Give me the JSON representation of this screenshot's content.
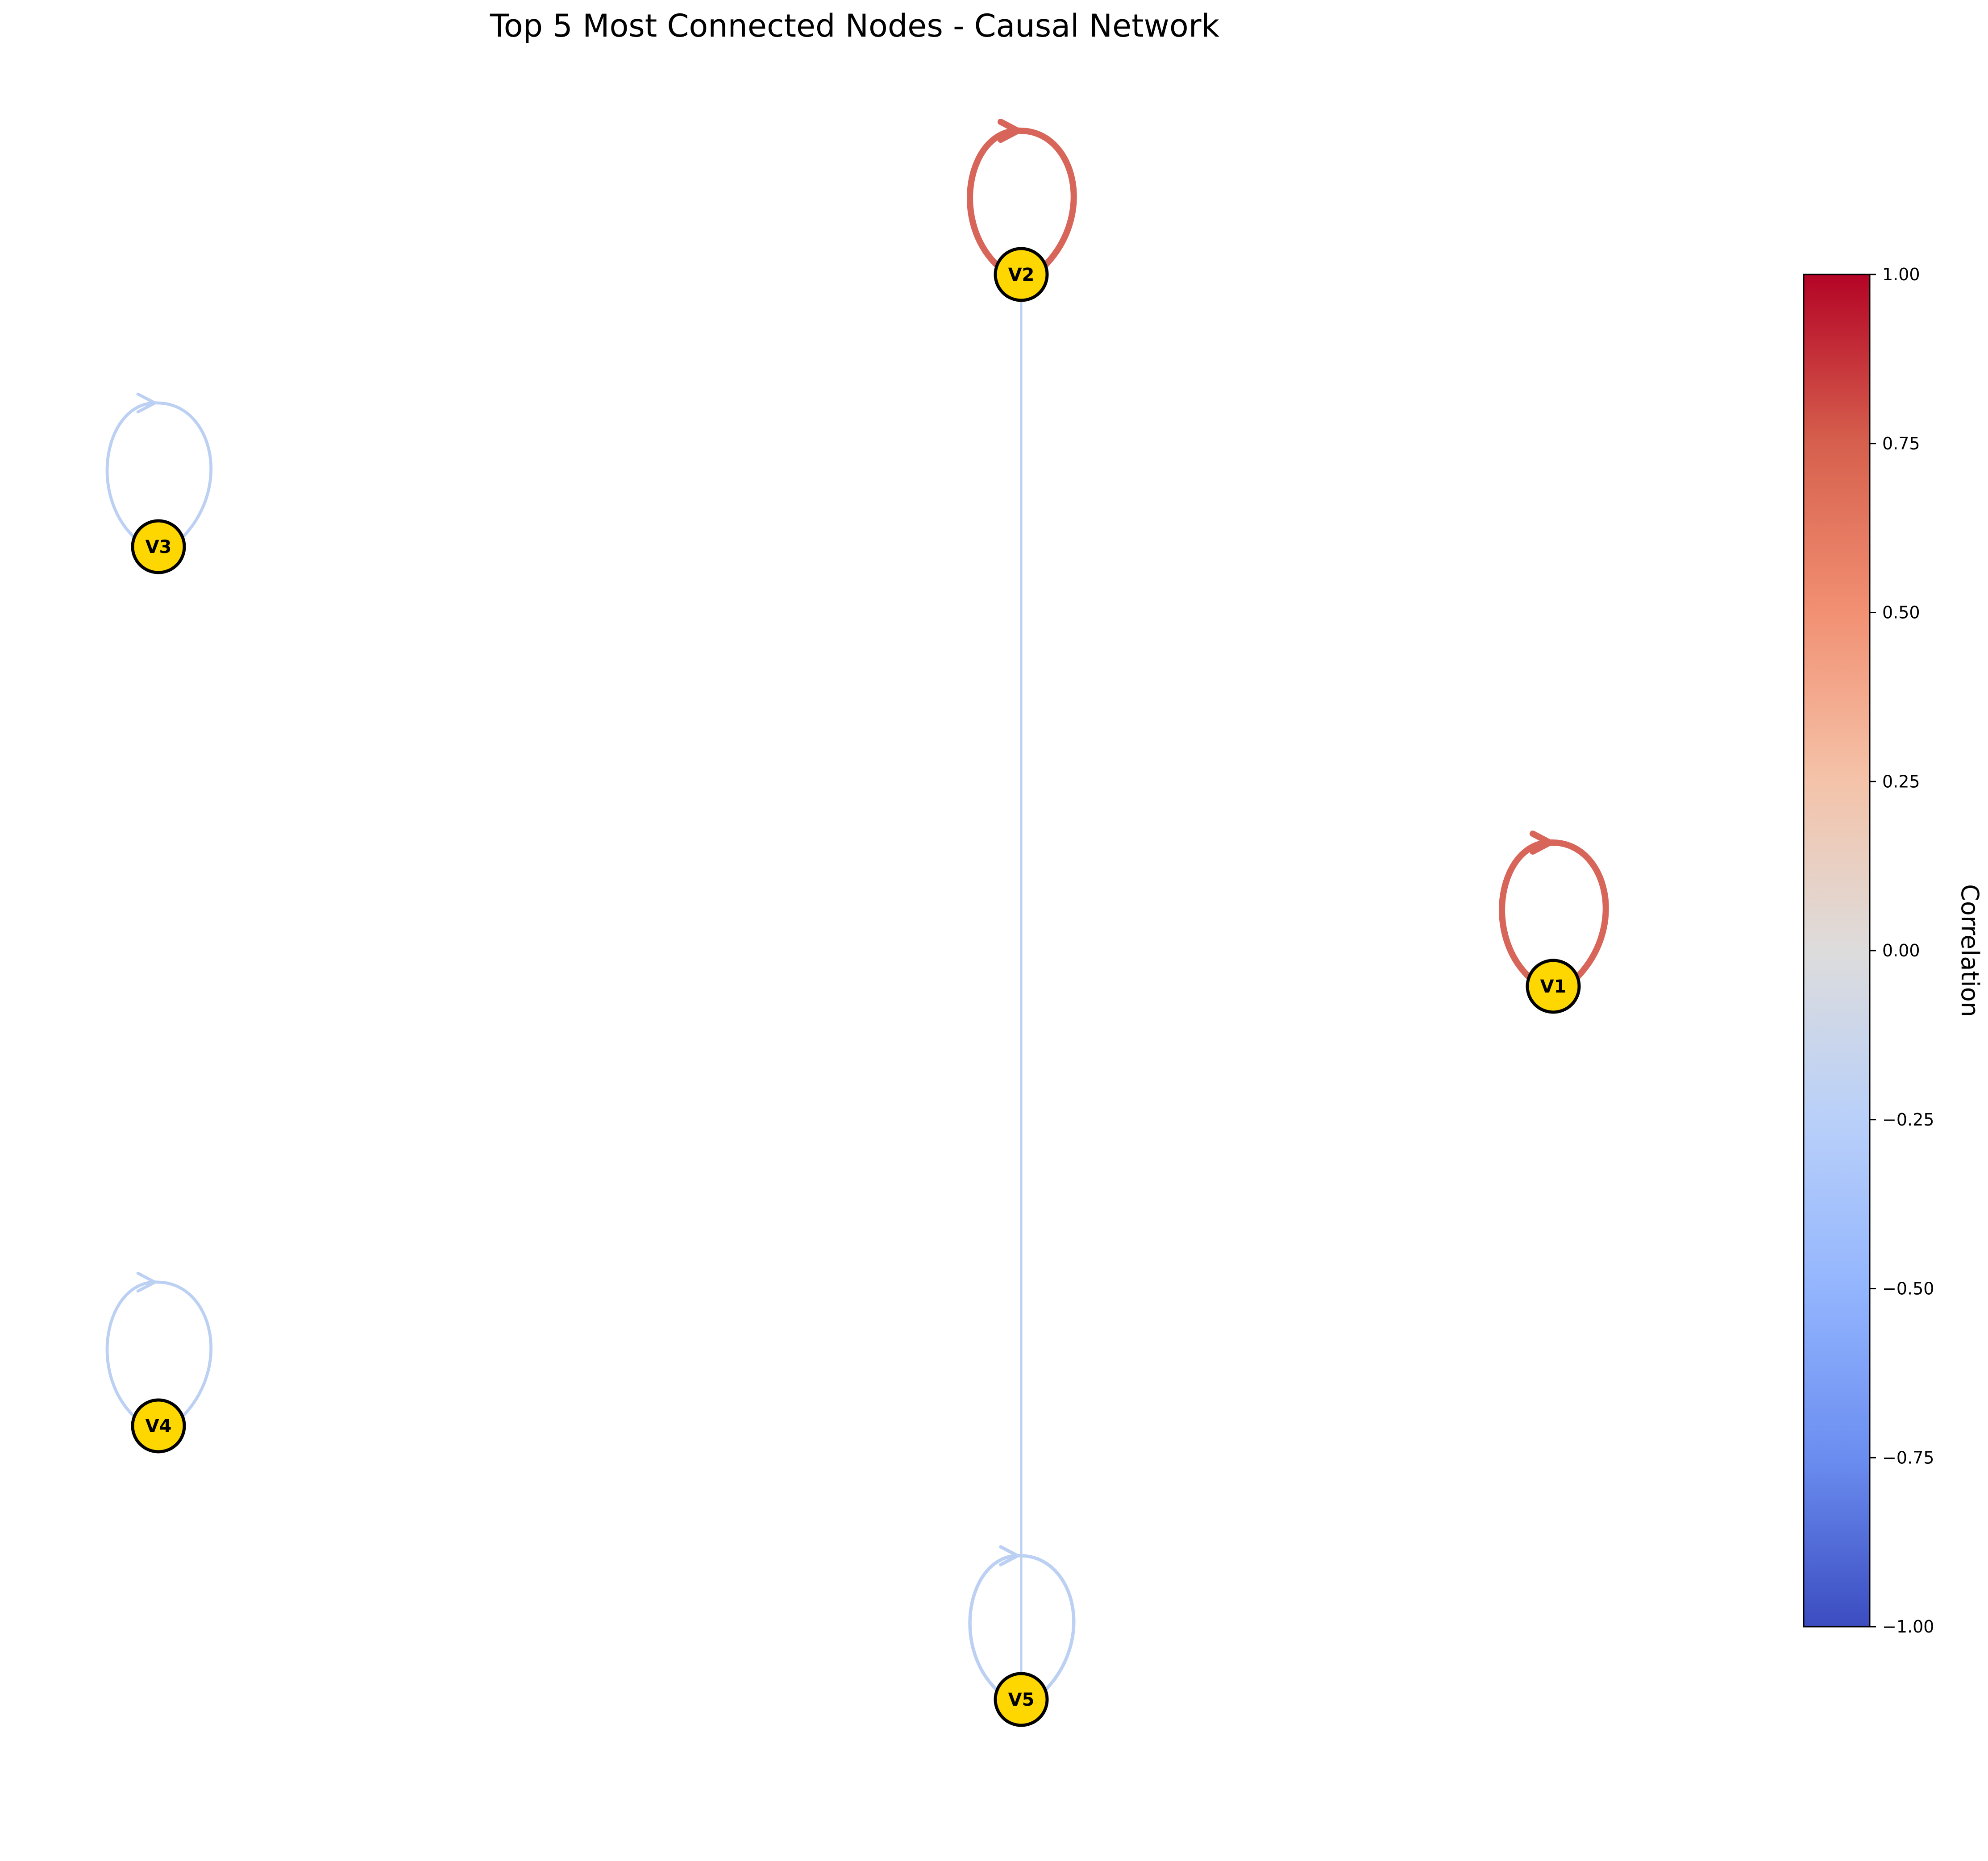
{
  "title": "Top 5 Most Connected Nodes - Causal Network",
  "colors": {
    "node_fill": "#FFD700",
    "node_stroke": "#000000",
    "positive_edge": "#D8655A",
    "negative_edge": "#BCD0F3"
  },
  "nodes": [
    {
      "id": "V1",
      "label": "V1"
    },
    {
      "id": "V2",
      "label": "V2"
    },
    {
      "id": "V3",
      "label": "V3"
    },
    {
      "id": "V4",
      "label": "V4"
    },
    {
      "id": "V5",
      "label": "V5"
    }
  ],
  "edges": [
    {
      "source": "V2",
      "target": "V2",
      "correlation": 0.72
    },
    {
      "source": "V1",
      "target": "V1",
      "correlation": 0.72
    },
    {
      "source": "V3",
      "target": "V3",
      "correlation": -0.2
    },
    {
      "source": "V4",
      "target": "V4",
      "correlation": -0.2
    },
    {
      "source": "V5",
      "target": "V5",
      "correlation": -0.25
    },
    {
      "source": "V2",
      "target": "V5",
      "correlation": -0.25
    }
  ],
  "colorbar": {
    "label": "Correlation",
    "colormap": "coolwarm",
    "range": [
      -1.0,
      1.0
    ],
    "ticks": [
      "1.00",
      "0.75",
      "0.50",
      "0.25",
      "0.00",
      "−0.25",
      "−0.50",
      "−0.75",
      "−1.00"
    ]
  }
}
